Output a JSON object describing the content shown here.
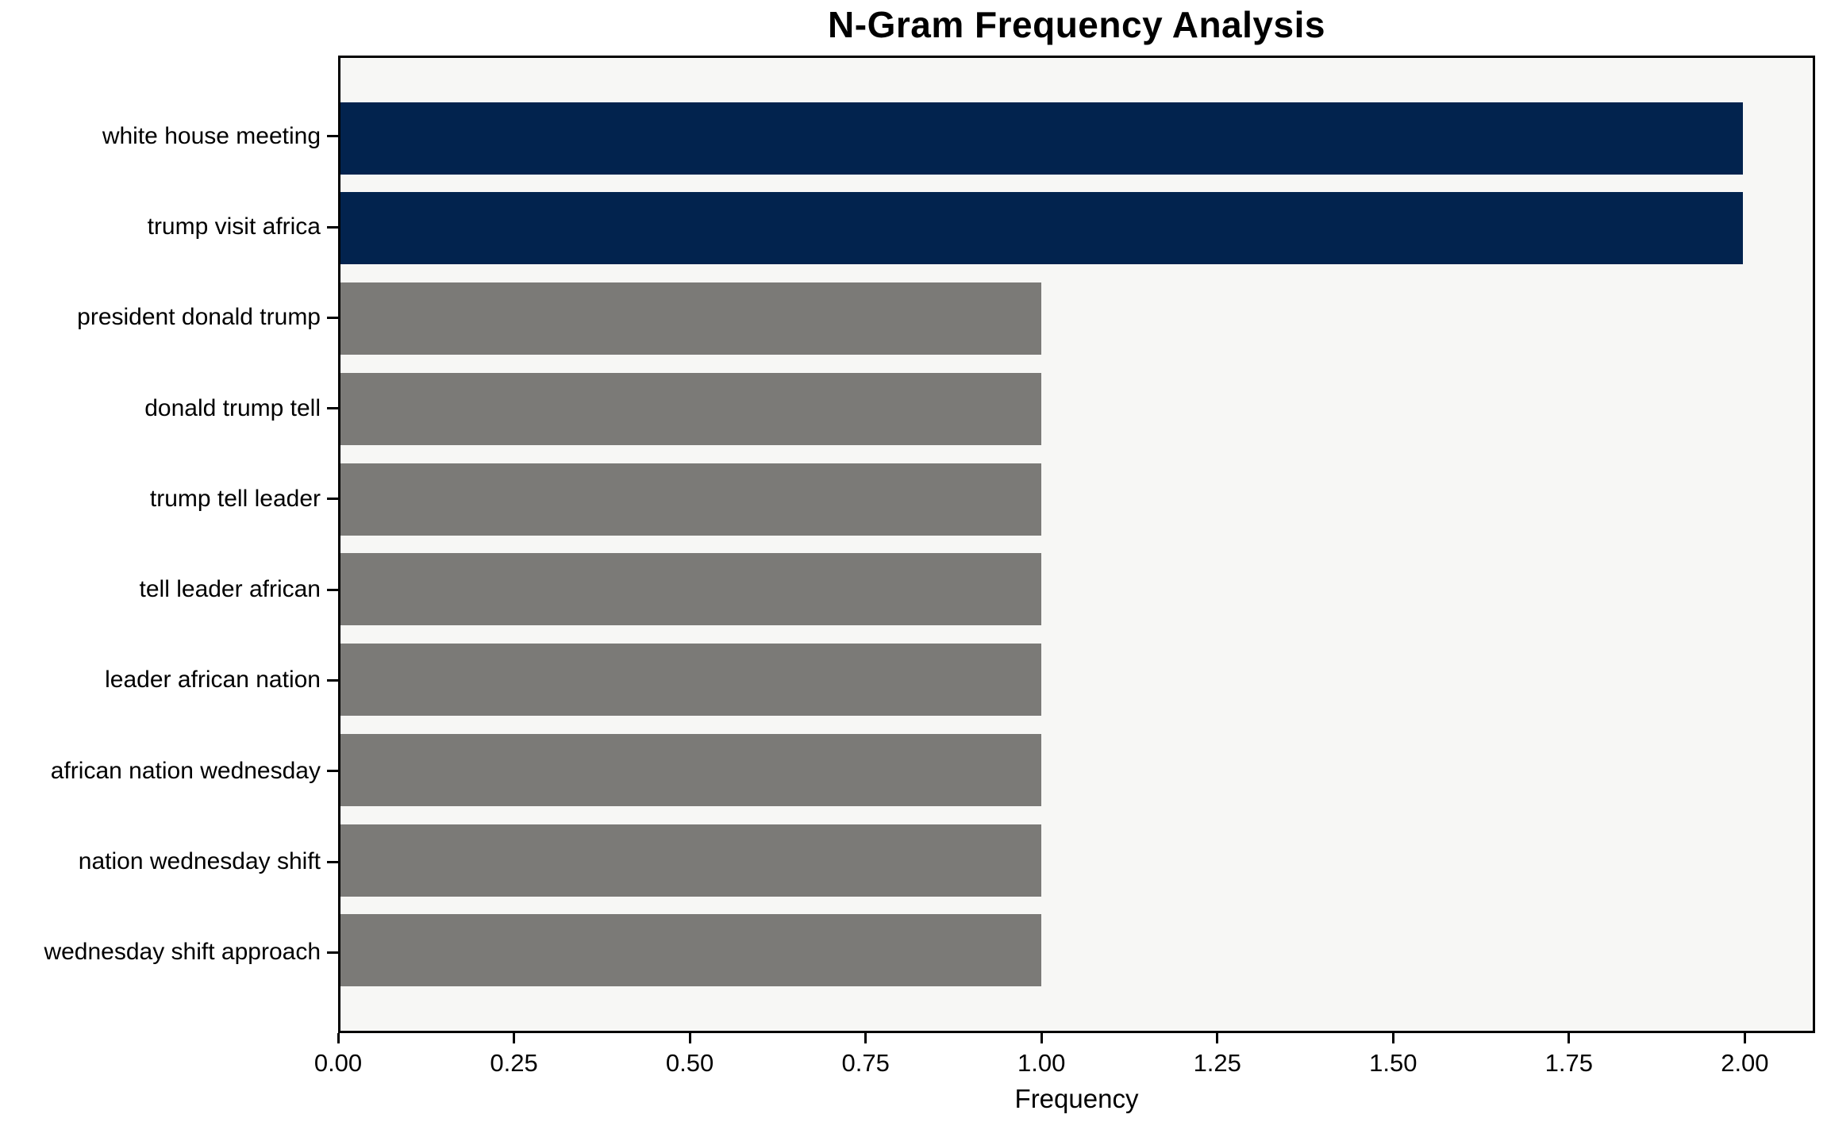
{
  "chart_data": {
    "type": "bar",
    "orientation": "horizontal",
    "title": "N-Gram Frequency Analysis",
    "xlabel": "Frequency",
    "ylabel": "",
    "categories": [
      "white house meeting",
      "trump visit africa",
      "president donald trump",
      "donald trump tell",
      "trump tell leader",
      "tell leader african",
      "leader african nation",
      "african nation wednesday",
      "nation wednesday shift",
      "wednesday shift approach"
    ],
    "values": [
      2,
      2,
      1,
      1,
      1,
      1,
      1,
      1,
      1,
      1
    ],
    "bar_color_keys": [
      "highlight",
      "highlight",
      "default",
      "default",
      "default",
      "default",
      "default",
      "default",
      "default",
      "default"
    ],
    "xlim": [
      0,
      2.1
    ],
    "xticks": [
      "0.00",
      "0.25",
      "0.50",
      "0.75",
      "1.00",
      "1.25",
      "1.50",
      "1.75",
      "2.00"
    ],
    "grid": false,
    "legend": null
  },
  "colors": {
    "highlight": "#02234E",
    "default": "#7B7A77",
    "plot_background": "#F7F7F5",
    "figure_background": "#FFFFFF",
    "axis": "#000000",
    "text": "#000000"
  }
}
